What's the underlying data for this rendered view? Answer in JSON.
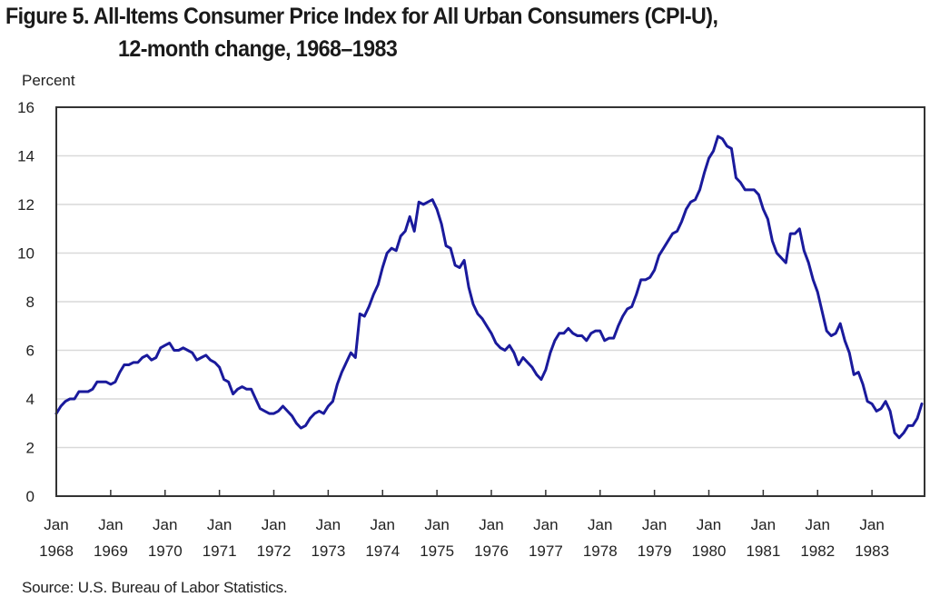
{
  "chart_data": {
    "type": "line",
    "title": "Figure 5. All-Items Consumer Price Index for All Urban Consumers (CPI-U),",
    "subtitle": "12-month change, 1968–1983",
    "ylabel": "Percent",
    "xlabel": "",
    "ylim": [
      0,
      16
    ],
    "yticks": [
      0,
      2,
      4,
      6,
      8,
      10,
      12,
      14,
      16
    ],
    "grid": true,
    "legend": "none",
    "line_color": "#1a1a9c",
    "x_start": "Jan 1968",
    "x_end": "Dec 1983",
    "frequency": "monthly",
    "xtick_labels": [
      {
        "month": "Jan",
        "year": "1968"
      },
      {
        "month": "Jan",
        "year": "1969"
      },
      {
        "month": "Jan",
        "year": "1970"
      },
      {
        "month": "Jan",
        "year": "1971"
      },
      {
        "month": "Jan",
        "year": "1972"
      },
      {
        "month": "Jan",
        "year": "1973"
      },
      {
        "month": "Jan",
        "year": "1974"
      },
      {
        "month": "Jan",
        "year": "1975"
      },
      {
        "month": "Jan",
        "year": "1976"
      },
      {
        "month": "Jan",
        "year": "1977"
      },
      {
        "month": "Jan",
        "year": "1978"
      },
      {
        "month": "Jan",
        "year": "1979"
      },
      {
        "month": "Jan",
        "year": "1980"
      },
      {
        "month": "Jan",
        "year": "1981"
      },
      {
        "month": "Jan",
        "year": "1982"
      },
      {
        "month": "Jan",
        "year": "1983"
      }
    ],
    "series": [
      {
        "name": "CPI-U 12-month change",
        "values": [
          3.4,
          3.7,
          3.9,
          4.0,
          4.0,
          4.3,
          4.3,
          4.3,
          4.4,
          4.7,
          4.7,
          4.7,
          4.6,
          4.7,
          5.1,
          5.4,
          5.4,
          5.5,
          5.5,
          5.7,
          5.8,
          5.6,
          5.7,
          6.1,
          6.2,
          6.3,
          6.0,
          6.0,
          6.1,
          6.0,
          5.9,
          5.6,
          5.7,
          5.8,
          5.6,
          5.5,
          5.3,
          4.8,
          4.7,
          4.2,
          4.4,
          4.5,
          4.4,
          4.4,
          4.0,
          3.6,
          3.5,
          3.4,
          3.4,
          3.5,
          3.7,
          3.5,
          3.3,
          3.0,
          2.8,
          2.9,
          3.2,
          3.4,
          3.5,
          3.4,
          3.7,
          3.9,
          4.6,
          5.1,
          5.5,
          5.9,
          5.7,
          7.5,
          7.4,
          7.8,
          8.3,
          8.7,
          9.4,
          10.0,
          10.2,
          10.1,
          10.7,
          10.9,
          11.5,
          10.9,
          12.1,
          12.0,
          12.1,
          12.2,
          11.8,
          11.2,
          10.3,
          10.2,
          9.5,
          9.4,
          9.7,
          8.6,
          7.9,
          7.5,
          7.3,
          7.0,
          6.7,
          6.3,
          6.1,
          6.0,
          6.2,
          5.9,
          5.4,
          5.7,
          5.5,
          5.3,
          5.0,
          4.8,
          5.2,
          5.9,
          6.4,
          6.7,
          6.7,
          6.9,
          6.7,
          6.6,
          6.6,
          6.4,
          6.7,
          6.8,
          6.8,
          6.4,
          6.5,
          6.5,
          7.0,
          7.4,
          7.7,
          7.8,
          8.3,
          8.9,
          8.9,
          9.0,
          9.3,
          9.9,
          10.2,
          10.5,
          10.8,
          10.9,
          11.3,
          11.8,
          12.1,
          12.2,
          12.6,
          13.3,
          13.9,
          14.2,
          14.8,
          14.7,
          14.4,
          14.3,
          13.1,
          12.9,
          12.6,
          12.6,
          12.6,
          12.4,
          11.8,
          11.4,
          10.5,
          10.0,
          9.8,
          9.6,
          10.8,
          10.8,
          11.0,
          10.1,
          9.6,
          8.9,
          8.4,
          7.6,
          6.8,
          6.6,
          6.7,
          7.1,
          6.4,
          5.9,
          5.0,
          5.1,
          4.6,
          3.9,
          3.8,
          3.5,
          3.6,
          3.9,
          3.5,
          2.6,
          2.4,
          2.6,
          2.9,
          2.9,
          3.2,
          3.8
        ]
      }
    ]
  },
  "source": "Source: U.S. Bureau of Labor Statistics."
}
